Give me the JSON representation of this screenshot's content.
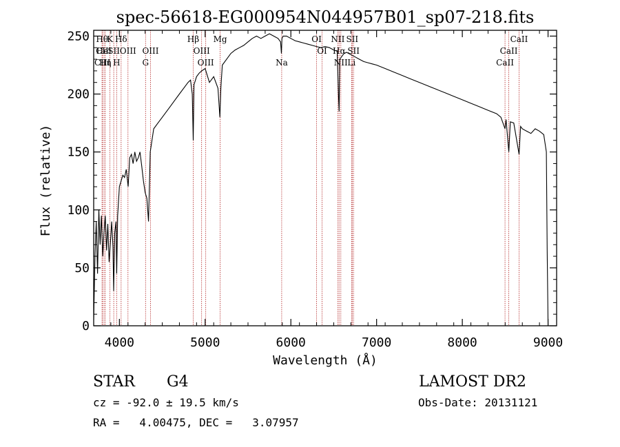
{
  "chart_data": {
    "type": "line",
    "title": "spec-56618-EG000954N044957B01_sp07-218.fits",
    "xlabel": "Wavelength (Å)",
    "ylabel": "Flux (relative)",
    "xlim": [
      3700,
      9100
    ],
    "ylim": [
      0,
      255
    ],
    "xticks": [
      4000,
      5000,
      6000,
      7000,
      8000,
      9000
    ],
    "yticks": [
      0,
      50,
      100,
      150,
      200,
      250
    ],
    "grid": false,
    "line_color": "#000000",
    "marker_color": "#b22222",
    "series": [
      {
        "x": [
          3700,
          3715,
          3730,
          3745,
          3760,
          3775,
          3790,
          3805,
          3820,
          3835,
          3850,
          3865,
          3880,
          3895,
          3910,
          3925,
          3933,
          3945,
          3960,
          3968,
          3980,
          4000,
          4020,
          4040,
          4060,
          4080,
          4102,
          4120,
          4140,
          4160,
          4180,
          4200,
          4220,
          4240,
          4260,
          4280,
          4300,
          4320,
          4340,
          4360,
          4380,
          4400,
          4450,
          4500,
          4550,
          4600,
          4650,
          4700,
          4750,
          4800,
          4830,
          4850,
          4861,
          4870,
          4900,
          4930,
          4960,
          5000,
          5050,
          5100,
          5150,
          5172,
          5183,
          5200,
          5250,
          5300,
          5350,
          5400,
          5450,
          5500,
          5550,
          5600,
          5650,
          5700,
          5750,
          5800,
          5850,
          5880,
          5890,
          5896,
          5910,
          5950,
          6000,
          6050,
          6100,
          6150,
          6200,
          6250,
          6300,
          6350,
          6400,
          6450,
          6500,
          6540,
          6555,
          6563,
          6570,
          6590,
          6620,
          6650,
          6700,
          6750,
          6800,
          6850,
          6900,
          6950,
          7000,
          7100,
          7200,
          7300,
          7400,
          7500,
          7600,
          7700,
          7800,
          7900,
          8000,
          8100,
          8200,
          8300,
          8400,
          8450,
          8498,
          8510,
          8542,
          8560,
          8600,
          8662,
          8680,
          8700,
          8750,
          8800,
          8850,
          8900,
          8950,
          8980,
          8990,
          9000
        ],
        "y": [
          5,
          60,
          90,
          45,
          100,
          70,
          95,
          60,
          80,
          95,
          65,
          88,
          55,
          72,
          90,
          68,
          30,
          80,
          90,
          45,
          95,
          120,
          125,
          130,
          128,
          135,
          120,
          145,
          148,
          140,
          150,
          142,
          145,
          150,
          138,
          125,
          115,
          110,
          90,
          150,
          160,
          170,
          175,
          180,
          185,
          190,
          195,
          200,
          205,
          210,
          212,
          200,
          160,
          208,
          215,
          218,
          220,
          222,
          210,
          215,
          205,
          180,
          205,
          225,
          230,
          235,
          238,
          240,
          242,
          245,
          248,
          250,
          248,
          250,
          252,
          250,
          248,
          245,
          235,
          248,
          250,
          250,
          248,
          246,
          245,
          244,
          243,
          242,
          241,
          240,
          241,
          240,
          238,
          237,
          200,
          185,
          230,
          232,
          235,
          236,
          234,
          232,
          230,
          228,
          227,
          226,
          225,
          222,
          219,
          216,
          213,
          210,
          207,
          204,
          201,
          198,
          195,
          192,
          189,
          186,
          183,
          180,
          170,
          178,
          150,
          176,
          175,
          148,
          172,
          170,
          168,
          166,
          170,
          168,
          165,
          150,
          65,
          0
        ]
      }
    ],
    "line_markers": [
      {
        "label": "Hθ",
        "x": 3798,
        "row": 0
      },
      {
        "label": "CII",
        "x": 3800,
        "row": 1
      },
      {
        "label": "CIII",
        "x": 3802,
        "row": 2
      },
      {
        "label": "HeI",
        "x": 3820,
        "row": 1
      },
      {
        "label": "Hη",
        "x": 3835,
        "row": 2
      },
      {
        "label": "K",
        "x": 3890,
        "row": 0
      },
      {
        "label": "SII",
        "x": 3934,
        "row": 1
      },
      {
        "label": "H",
        "x": 3968,
        "row": 2
      },
      {
        "label": "Hδ",
        "x": 4020,
        "row": 0
      },
      {
        "label": "OIII",
        "x": 4100,
        "row": 1
      },
      {
        "label": "G",
        "x": 4305,
        "row": 2
      },
      {
        "label": "OIII",
        "x": 4363,
        "row": 1
      },
      {
        "label": "Hβ",
        "x": 4861,
        "row": 0
      },
      {
        "label": "OIII",
        "x": 4959,
        "row": 1
      },
      {
        "label": "OIII",
        "x": 5007,
        "row": 2
      },
      {
        "label": "Mg",
        "x": 5175,
        "row": 0
      },
      {
        "label": "Na",
        "x": 5893,
        "row": 2
      },
      {
        "label": "OI",
        "x": 6300,
        "row": 0
      },
      {
        "label": "OI",
        "x": 6364,
        "row": 1
      },
      {
        "label": "NII",
        "x": 6548,
        "row": 0
      },
      {
        "label": "Hα",
        "x": 6563,
        "row": 1
      },
      {
        "label": "NII",
        "x": 6583,
        "row": 2
      },
      {
        "label": "SII",
        "x": 6716,
        "row": 0
      },
      {
        "label": "SII",
        "x": 6731,
        "row": 1
      },
      {
        "label": "Li",
        "x": 6708,
        "row": 2
      },
      {
        "label": "CaII",
        "x": 8498,
        "row": 2
      },
      {
        "label": "CaII",
        "x": 8542,
        "row": 1
      },
      {
        "label": "CaII",
        "x": 8662,
        "row": 0
      }
    ]
  },
  "info": {
    "object_class": "STAR",
    "subclass": "G4",
    "survey": "LAMOST DR2",
    "redshift": "cz = -92.0 ± 19.5 km/s",
    "obs_date": "Obs-Date: 20131121",
    "coords": "RA =   4.00475, DEC =   3.07957"
  }
}
